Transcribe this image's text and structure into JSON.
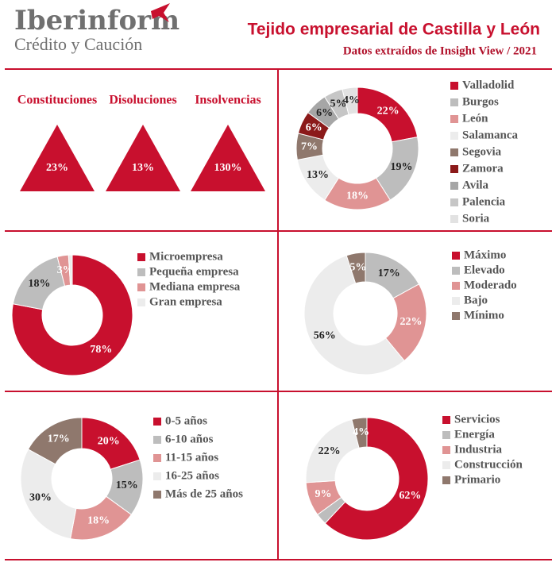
{
  "header": {
    "brand": "Iberinform",
    "brand_sub": "Crédito y Caución",
    "title": "Tejido empresarial de Castilla y León",
    "subtitle": "Datos extraídos de Insight View / 2021"
  },
  "indicators": [
    {
      "label": "Constituciones",
      "value": "23%"
    },
    {
      "label": "Disoluciones",
      "value": "13%"
    },
    {
      "label": "Insolvencias",
      "value": "130%"
    }
  ],
  "chart_data": [
    {
      "type": "pie",
      "donut": true,
      "categories": [
        "Valladolid",
        "Burgos",
        "León",
        "Salamanca",
        "Segovia",
        "Zamora",
        "Avila",
        "Palencia",
        "Soria"
      ],
      "values": [
        22,
        19,
        18,
        13,
        7,
        6,
        6,
        5,
        4
      ],
      "value_labels": [
        "22%",
        "19%",
        "18%",
        "13%",
        "7%",
        "6%",
        "6%",
        "5%",
        "4%"
      ],
      "colors": [
        "#c8102e",
        "#bdbdbd",
        "#e09494",
        "#ececec",
        "#8f786d",
        "#8b1a1a",
        "#a6a6a6",
        "#c6c6c6",
        "#e2e2e2"
      ]
    },
    {
      "type": "pie",
      "donut": true,
      "categories": [
        "Microempresa",
        "Pequeña empresa",
        "Mediana empresa",
        "Gran empresa"
      ],
      "values": [
        78,
        18,
        3,
        1
      ],
      "value_labels": [
        "78%",
        "18%",
        "3%",
        null
      ],
      "colors": [
        "#c8102e",
        "#bdbdbd",
        "#e09494",
        "#ececec"
      ]
    },
    {
      "type": "pie",
      "donut": true,
      "categories": [
        "Máximo",
        "Elevado",
        "Moderado",
        "Bajo",
        "Mínimo"
      ],
      "values": [
        0,
        17,
        22,
        56,
        5
      ],
      "value_labels": [
        null,
        "17%",
        "22%",
        "56%",
        "5%"
      ],
      "colors": [
        "#c8102e",
        "#bdbdbd",
        "#e09494",
        "#ececec",
        "#8f786d"
      ]
    },
    {
      "type": "pie",
      "donut": true,
      "categories": [
        "0-5 años",
        "6-10 años",
        "11-15 años",
        "16-25 años",
        "Más de 25 años"
      ],
      "values": [
        20,
        15,
        18,
        30,
        17
      ],
      "value_labels": [
        "20%",
        "15%",
        "18%",
        "30%",
        "17%"
      ],
      "colors": [
        "#c8102e",
        "#bdbdbd",
        "#e09494",
        "#ececec",
        "#8f786d"
      ]
    },
    {
      "type": "pie",
      "donut": true,
      "categories": [
        "Servicios",
        "Energía",
        "Industria",
        "Construcción",
        "Primario"
      ],
      "values": [
        62,
        3,
        9,
        22,
        4
      ],
      "value_labels": [
        "62%",
        null,
        "9%",
        "22%",
        "4%"
      ],
      "colors": [
        "#c8102e",
        "#bdbdbd",
        "#e09494",
        "#ececec",
        "#8f786d"
      ]
    }
  ]
}
